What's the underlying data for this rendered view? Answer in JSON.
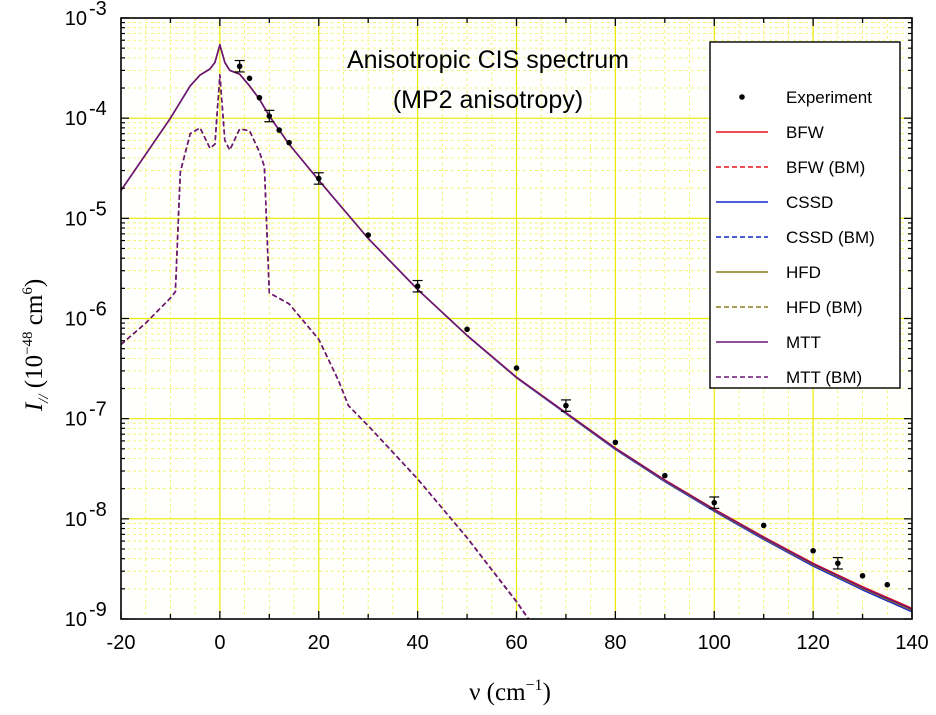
{
  "chart_data": {
    "type": "line",
    "title": "Anisotropic CIS spectrum",
    "subtitle": "(MP2 anisotropy)",
    "xlabel": {
      "symbol": "ν",
      "unit_open": " (cm",
      "unit_exp": "−1",
      "unit_close": ")"
    },
    "ylabel": {
      "symbol": "I",
      "subscript": "//",
      "unit_open": " (10",
      "unit_exp1": "−48",
      "unit_mid": " cm",
      "unit_exp2": "6",
      "unit_close": ")"
    },
    "xlim": [
      -20,
      140
    ],
    "ylim": [
      1e-09,
      0.001
    ],
    "yscale": "log",
    "grid": true,
    "legend_position": "top-right",
    "x_ticks": [
      {
        "value": -20,
        "label": "-20"
      },
      {
        "value": 0,
        "label": "0"
      },
      {
        "value": 20,
        "label": "20"
      },
      {
        "value": 40,
        "label": "40"
      },
      {
        "value": 60,
        "label": "60"
      },
      {
        "value": 80,
        "label": "80"
      },
      {
        "value": 100,
        "label": "100"
      },
      {
        "value": 120,
        "label": "120"
      },
      {
        "value": 140,
        "label": "140"
      }
    ],
    "y_ticks": [
      {
        "value": 1e-09,
        "base": "10",
        "exp": "-9"
      },
      {
        "value": 1e-08,
        "base": "10",
        "exp": "-8"
      },
      {
        "value": 1e-07,
        "base": "10",
        "exp": "-7"
      },
      {
        "value": 1e-06,
        "base": "10",
        "exp": "-6"
      },
      {
        "value": 1e-05,
        "base": "10",
        "exp": "-5"
      },
      {
        "value": 0.0001,
        "base": "10",
        "exp": "-4"
      },
      {
        "value": 0.001,
        "base": "10",
        "exp": "-3"
      }
    ],
    "experiment": {
      "name": "Experiment",
      "color": "#000000",
      "points": [
        {
          "x": 4,
          "y": 0.00033,
          "err": true
        },
        {
          "x": 6,
          "y": 0.00025,
          "err": false
        },
        {
          "x": 8,
          "y": 0.00016,
          "err": false
        },
        {
          "x": 10,
          "y": 0.000105,
          "err": true
        },
        {
          "x": 12,
          "y": 7.6e-05,
          "err": false
        },
        {
          "x": 14,
          "y": 5.7e-05,
          "err": false
        },
        {
          "x": 20,
          "y": 2.5e-05,
          "err": true
        },
        {
          "x": 30,
          "y": 6.8e-06,
          "err": false
        },
        {
          "x": 40,
          "y": 2.1e-06,
          "err": true
        },
        {
          "x": 50,
          "y": 7.8e-07,
          "err": false
        },
        {
          "x": 60,
          "y": 3.2e-07,
          "err": false
        },
        {
          "x": 70,
          "y": 1.35e-07,
          "err": true
        },
        {
          "x": 80,
          "y": 5.8e-08,
          "err": false
        },
        {
          "x": 90,
          "y": 2.7e-08,
          "err": false
        },
        {
          "x": 100,
          "y": 1.45e-08,
          "err": true
        },
        {
          "x": 110,
          "y": 8.6e-09,
          "err": false
        },
        {
          "x": 120,
          "y": 4.8e-09,
          "err": false
        },
        {
          "x": 125,
          "y": 3.6e-09,
          "err": true
        },
        {
          "x": 130,
          "y": 2.7e-09,
          "err": false
        },
        {
          "x": 135,
          "y": 2.2e-09,
          "err": false
        }
      ]
    },
    "series": [
      {
        "name": "BFW",
        "color": "#e8141c",
        "dash": false,
        "offset": 0,
        "x": [
          -20,
          -10,
          -8,
          -6,
          -4,
          -2,
          -1,
          0,
          1,
          2,
          4,
          6,
          8,
          10,
          14,
          20,
          30,
          40,
          50,
          60,
          70,
          80,
          90,
          100,
          110,
          120,
          130,
          140
        ],
        "y": [
          1.9e-05,
          0.0001,
          0.000145,
          0.00021,
          0.00027,
          0.00031,
          0.00036,
          0.00054,
          0.00036,
          0.0003,
          0.000275,
          0.00021,
          0.000155,
          0.000105,
          5.5e-05,
          2.4e-05,
          6.3e-06,
          1.95e-06,
          6.8e-07,
          2.6e-07,
          1.15e-07,
          5.1e-08,
          2.45e-08,
          1.25e-08,
          6.6e-09,
          3.6e-09,
          2.1e-09,
          1.28e-09
        ]
      },
      {
        "name": "BFW (BM)",
        "color": "#e8141c",
        "dash": true,
        "offset": 0,
        "x": [
          -20,
          -15,
          -10,
          -9,
          -8,
          -6,
          -4,
          -2,
          -1,
          0,
          1,
          2,
          4,
          6,
          8,
          9,
          10,
          14,
          20,
          24,
          26,
          30,
          40,
          50,
          60,
          64
        ],
        "y": [
          5.5e-07,
          9e-07,
          1.6e-06,
          1.85e-06,
          2.9e-05,
          7e-05,
          8e-05,
          5e-05,
          5.5e-05,
          0.00027,
          6e-05,
          4.8e-05,
          7.8e-05,
          7.5e-05,
          4.6e-05,
          3.3e-05,
          1.8e-06,
          1.4e-06,
          6.2e-07,
          2.4e-07,
          1.35e-07,
          8.5e-08,
          2.5e-08,
          6.5e-09,
          1.5e-09,
          7.8e-10
        ]
      },
      {
        "name": "CSSD",
        "color": "#1428c8",
        "dash": false,
        "offset": -0.035,
        "x": [
          -20,
          -10,
          -8,
          -6,
          -4,
          -2,
          -1,
          0,
          1,
          2,
          4,
          6,
          8,
          10,
          14,
          20,
          30,
          40,
          50,
          60,
          70,
          80,
          90,
          100,
          110,
          120,
          130,
          140
        ],
        "y": [
          1.9e-05,
          0.0001,
          0.000145,
          0.00021,
          0.00027,
          0.00031,
          0.00036,
          0.00054,
          0.00036,
          0.0003,
          0.000275,
          0.00021,
          0.000155,
          0.000105,
          5.5e-05,
          2.4e-05,
          6.3e-06,
          1.95e-06,
          6.8e-07,
          2.6e-07,
          1.15e-07,
          5.1e-08,
          2.45e-08,
          1.25e-08,
          6.6e-09,
          3.6e-09,
          2.1e-09,
          1.28e-09
        ]
      },
      {
        "name": "CSSD (BM)",
        "color": "#1428c8",
        "dash": true,
        "offset": -0.035,
        "x": [
          -20,
          -15,
          -10,
          -9,
          -8,
          -6,
          -4,
          -2,
          -1,
          0,
          1,
          2,
          4,
          6,
          8,
          9,
          10,
          14,
          20,
          24,
          26,
          30,
          40,
          50,
          60,
          64
        ],
        "y": [
          5.5e-07,
          9e-07,
          1.6e-06,
          1.85e-06,
          2.9e-05,
          7e-05,
          8e-05,
          5e-05,
          5.5e-05,
          0.00027,
          6e-05,
          4.8e-05,
          7.8e-05,
          7.5e-05,
          4.6e-05,
          3.3e-05,
          1.8e-06,
          1.4e-06,
          6.2e-07,
          2.4e-07,
          1.35e-07,
          8.5e-08,
          2.5e-08,
          6.5e-09,
          1.5e-09,
          7.8e-10
        ]
      },
      {
        "name": "HFD",
        "color": "#8c7a1e",
        "dash": false,
        "offset": -0.02,
        "x": [
          -20,
          -10,
          -8,
          -6,
          -4,
          -2,
          -1,
          0,
          1,
          2,
          4,
          6,
          8,
          10,
          14,
          20,
          30,
          40,
          50,
          60,
          70,
          80,
          90,
          100,
          110,
          120,
          130,
          140
        ],
        "y": [
          1.9e-05,
          0.0001,
          0.000145,
          0.00021,
          0.00027,
          0.00031,
          0.00036,
          0.00054,
          0.00036,
          0.0003,
          0.000275,
          0.00021,
          0.000155,
          0.000105,
          5.5e-05,
          2.4e-05,
          6.3e-06,
          1.95e-06,
          6.8e-07,
          2.6e-07,
          1.15e-07,
          5.1e-08,
          2.45e-08,
          1.25e-08,
          6.6e-09,
          3.6e-09,
          2.1e-09,
          1.28e-09
        ]
      },
      {
        "name": "HFD (BM)",
        "color": "#8c7a1e",
        "dash": true,
        "offset": -0.02,
        "x": [
          -20,
          -15,
          -10,
          -9,
          -8,
          -6,
          -4,
          -2,
          -1,
          0,
          1,
          2,
          4,
          6,
          8,
          9,
          10,
          14,
          20,
          24,
          26,
          30,
          40,
          50,
          60,
          64
        ],
        "y": [
          5.5e-07,
          9e-07,
          1.6e-06,
          1.85e-06,
          2.9e-05,
          7e-05,
          8e-05,
          5e-05,
          5.5e-05,
          0.00027,
          6e-05,
          4.8e-05,
          7.8e-05,
          7.5e-05,
          4.6e-05,
          3.3e-05,
          1.8e-06,
          1.4e-06,
          6.2e-07,
          2.4e-07,
          1.35e-07,
          8.5e-08,
          2.5e-08,
          6.5e-09,
          1.5e-09,
          7.8e-10
        ]
      },
      {
        "name": "MTT",
        "color": "#6e1478",
        "dash": false,
        "offset": -0.01,
        "x": [
          -20,
          -10,
          -8,
          -6,
          -4,
          -2,
          -1,
          0,
          1,
          2,
          4,
          6,
          8,
          10,
          14,
          20,
          30,
          40,
          50,
          60,
          70,
          80,
          90,
          100,
          110,
          120,
          130,
          140
        ],
        "y": [
          1.9e-05,
          0.0001,
          0.000145,
          0.00021,
          0.00027,
          0.00031,
          0.00036,
          0.00054,
          0.00036,
          0.0003,
          0.000275,
          0.00021,
          0.000155,
          0.000105,
          5.5e-05,
          2.4e-05,
          6.3e-06,
          1.95e-06,
          6.8e-07,
          2.6e-07,
          1.15e-07,
          5.1e-08,
          2.45e-08,
          1.25e-08,
          6.6e-09,
          3.6e-09,
          2.1e-09,
          1.28e-09
        ]
      },
      {
        "name": "MTT (BM)",
        "color": "#6e1478",
        "dash": true,
        "offset": -0.01,
        "x": [
          -20,
          -15,
          -10,
          -9,
          -8,
          -6,
          -4,
          -2,
          -1,
          0,
          1,
          2,
          4,
          6,
          8,
          9,
          10,
          14,
          20,
          24,
          26,
          30,
          40,
          50,
          60,
          64
        ],
        "y": [
          5.5e-07,
          9e-07,
          1.6e-06,
          1.85e-06,
          2.9e-05,
          7e-05,
          8e-05,
          5e-05,
          5.5e-05,
          0.00027,
          6e-05,
          4.8e-05,
          7.8e-05,
          7.5e-05,
          4.6e-05,
          3.3e-05,
          1.8e-06,
          1.4e-06,
          6.2e-07,
          2.4e-07,
          1.35e-07,
          8.5e-08,
          2.5e-08,
          6.5e-09,
          1.5e-09,
          7.8e-10
        ]
      }
    ]
  }
}
